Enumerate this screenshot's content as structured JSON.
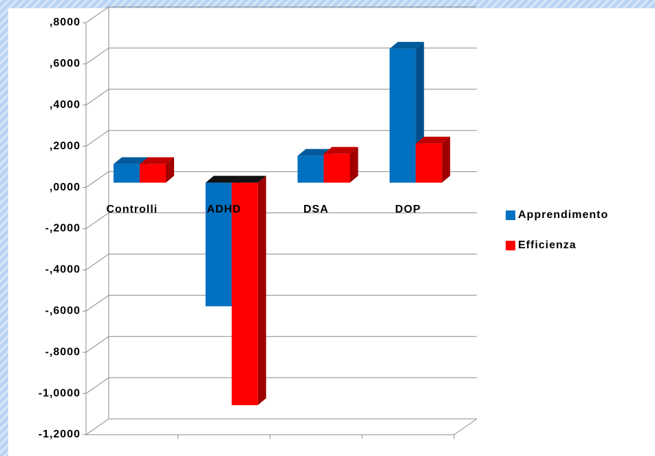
{
  "chart_data": {
    "type": "bar",
    "categories": [
      "Controlli",
      "ADHD",
      "DSA",
      "DOP"
    ],
    "series": [
      {
        "name": "Apprendimento",
        "color": "#0070c0",
        "values": [
          0.09,
          -0.6,
          0.13,
          0.65
        ]
      },
      {
        "name": "Efficienza",
        "color": "#ff0000",
        "values": [
          0.09,
          -1.08,
          0.14,
          0.19
        ]
      }
    ],
    "ylim": [
      -1.2,
      0.8
    ],
    "yticks": [
      {
        "value": 0.8,
        "label": ",8000"
      },
      {
        "value": 0.6,
        "label": ",6000"
      },
      {
        "value": 0.4,
        "label": ",4000"
      },
      {
        "value": 0.2,
        "label": ",2000"
      },
      {
        "value": 0,
        "label": ",0000"
      },
      {
        "value": -0.2,
        "label": "-,2000"
      },
      {
        "value": -0.4,
        "label": "-,4000"
      },
      {
        "value": -0.6,
        "label": "-,6000"
      },
      {
        "value": -0.8,
        "label": "-,8000"
      },
      {
        "value": -1.0,
        "label": "-1,0000"
      },
      {
        "value": -1.2,
        "label": "-1,2000"
      }
    ],
    "grid": true,
    "legend": "right"
  }
}
